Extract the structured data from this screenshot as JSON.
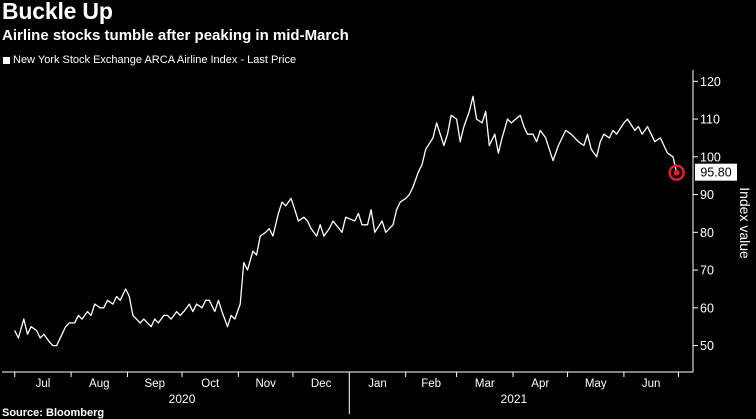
{
  "header": {
    "title": "Buckle Up",
    "subtitle": "Airline stocks tumble after peaking in mid-March"
  },
  "footer": {
    "source": "Source: Bloomberg"
  },
  "colors": {
    "background": "#000000",
    "line": "#ffffff",
    "marker": "#e02030"
  },
  "chart_data": {
    "type": "line",
    "title": "Buckle Up",
    "subtitle": "Airline stocks tumble after peaking in mid-March",
    "ylabel": "Index value",
    "legend": "top-left",
    "legend_entries": [
      "New York Stock Exchange ARCA Airline Index - Last Price"
    ],
    "ylim": [
      43,
      123
    ],
    "yticks": [
      50,
      60,
      70,
      80,
      90,
      100,
      110,
      120
    ],
    "grid": false,
    "x_months": [
      "Jul",
      "Aug",
      "Sep",
      "Oct",
      "Nov",
      "Dec",
      "Jan",
      "Feb",
      "Mar",
      "Apr",
      "May",
      "Jun"
    ],
    "x_years": [
      "2020",
      "2021"
    ],
    "last_price": "95.80",
    "series": [
      {
        "name": "New York Stock Exchange ARCA Airline Index - Last Price",
        "x": [
          "2020-07-01",
          "2020-07-03",
          "2020-07-06",
          "2020-07-08",
          "2020-07-10",
          "2020-07-13",
          "2020-07-15",
          "2020-07-17",
          "2020-07-20",
          "2020-07-22",
          "2020-07-24",
          "2020-07-27",
          "2020-07-29",
          "2020-07-31",
          "2020-08-03",
          "2020-08-05",
          "2020-08-07",
          "2020-08-10",
          "2020-08-12",
          "2020-08-14",
          "2020-08-17",
          "2020-08-19",
          "2020-08-21",
          "2020-08-24",
          "2020-08-26",
          "2020-08-28",
          "2020-08-31",
          "2020-09-02",
          "2020-09-04",
          "2020-09-08",
          "2020-09-10",
          "2020-09-14",
          "2020-09-16",
          "2020-09-18",
          "2020-09-21",
          "2020-09-23",
          "2020-09-25",
          "2020-09-28",
          "2020-09-30",
          "2020-10-02",
          "2020-10-05",
          "2020-10-07",
          "2020-10-09",
          "2020-10-12",
          "2020-10-14",
          "2020-10-16",
          "2020-10-19",
          "2020-10-21",
          "2020-10-23",
          "2020-10-26",
          "2020-10-28",
          "2020-10-30",
          "2020-11-02",
          "2020-11-04",
          "2020-11-06",
          "2020-11-09",
          "2020-11-11",
          "2020-11-13",
          "2020-11-16",
          "2020-11-18",
          "2020-11-20",
          "2020-11-23",
          "2020-11-25",
          "2020-11-27",
          "2020-11-30",
          "2020-12-02",
          "2020-12-04",
          "2020-12-07",
          "2020-12-09",
          "2020-12-11",
          "2020-12-14",
          "2020-12-16",
          "2020-12-18",
          "2020-12-21",
          "2020-12-23",
          "2020-12-28",
          "2020-12-30",
          "2021-01-04",
          "2021-01-06",
          "2021-01-08",
          "2021-01-11",
          "2021-01-13",
          "2021-01-15",
          "2021-01-19",
          "2021-01-21",
          "2021-01-25",
          "2021-01-27",
          "2021-01-29",
          "2021-02-01",
          "2021-02-03",
          "2021-02-05",
          "2021-02-08",
          "2021-02-10",
          "2021-02-12",
          "2021-02-16",
          "2021-02-18",
          "2021-02-22",
          "2021-02-24",
          "2021-02-26",
          "2021-03-01",
          "2021-03-03",
          "2021-03-05",
          "2021-03-08",
          "2021-03-10",
          "2021-03-12",
          "2021-03-15",
          "2021-03-17",
          "2021-03-19",
          "2021-03-22",
          "2021-03-24",
          "2021-03-26",
          "2021-03-29",
          "2021-03-31",
          "2021-04-05",
          "2021-04-07",
          "2021-04-09",
          "2021-04-12",
          "2021-04-14",
          "2021-04-16",
          "2021-04-19",
          "2021-04-21",
          "2021-04-23",
          "2021-04-26",
          "2021-04-28",
          "2021-04-30",
          "2021-05-03",
          "2021-05-05",
          "2021-05-07",
          "2021-05-10",
          "2021-05-12",
          "2021-05-14",
          "2021-05-17",
          "2021-05-19",
          "2021-05-21",
          "2021-05-24",
          "2021-05-26",
          "2021-05-28",
          "2021-06-01",
          "2021-06-03",
          "2021-06-07",
          "2021-06-09",
          "2021-06-11",
          "2021-06-14",
          "2021-06-16",
          "2021-06-18",
          "2021-06-21",
          "2021-06-23",
          "2021-06-25",
          "2021-06-28",
          "2021-06-30"
        ],
        "values": [
          54,
          52,
          57,
          53,
          55,
          54,
          52,
          53,
          51,
          50,
          50,
          53,
          55,
          56,
          56,
          58,
          57,
          59,
          58,
          61,
          60,
          60,
          62,
          61,
          63,
          62,
          65,
          63,
          58,
          56,
          57,
          55,
          57,
          56,
          58,
          58,
          57,
          59,
          58,
          59,
          61,
          59,
          61,
          60,
          62,
          62,
          59,
          62,
          59,
          55,
          58,
          57,
          61,
          72,
          70,
          75,
          74,
          79,
          80,
          81,
          79,
          85,
          88,
          87,
          89,
          86,
          83,
          84,
          83,
          81,
          79,
          82,
          79,
          81,
          83,
          80,
          84,
          83,
          85,
          82,
          82,
          86,
          80,
          83,
          80,
          82,
          86,
          88,
          89,
          90,
          92,
          96,
          98,
          102,
          105,
          109,
          103,
          106,
          111,
          110,
          104,
          108,
          112,
          116,
          110,
          109,
          112,
          103,
          106,
          101,
          105,
          110,
          109,
          111,
          108,
          106,
          106,
          104,
          107,
          105,
          102,
          99,
          103,
          105,
          107,
          106,
          105,
          104,
          103,
          106,
          102,
          100,
          104,
          106,
          105,
          107,
          106,
          109,
          110,
          107,
          108,
          106,
          108,
          106,
          104,
          105,
          103,
          101,
          100,
          95.8
        ]
      }
    ]
  }
}
